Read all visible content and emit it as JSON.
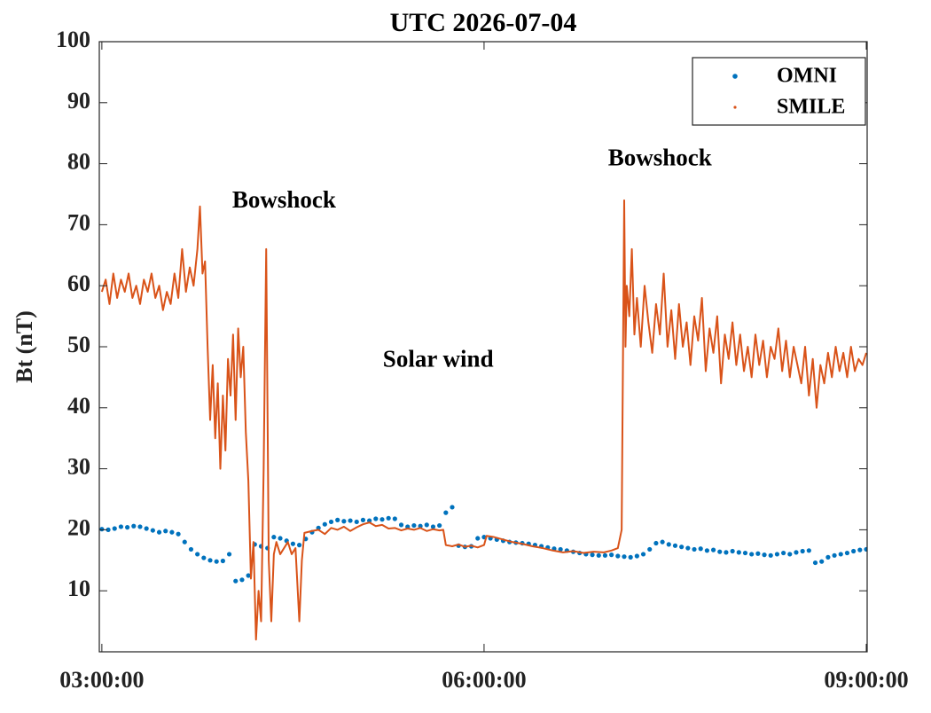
{
  "chart_data": {
    "type": "scatter",
    "title": "UTC 2026-07-04",
    "y_label": "Bt (nT)",
    "xlim": [
      2.98,
      9.007
    ],
    "ylim": [
      0,
      100
    ],
    "xticks": [
      {
        "value": 3,
        "label": "03:00:00"
      },
      {
        "value": 6,
        "label": "06:00:00"
      },
      {
        "value": 9,
        "label": "09:00:00"
      }
    ],
    "yticks": [
      10,
      20,
      30,
      40,
      50,
      60,
      70,
      80,
      90,
      100
    ],
    "grid": false,
    "legend": "upper right",
    "annotations": [
      {
        "text": "Bowshock",
        "x": 4.43,
        "y": 73.7
      },
      {
        "text": "Solar wind",
        "x": 5.64,
        "y": 47.6
      },
      {
        "text": "Bowshock",
        "x": 7.38,
        "y": 80.6
      }
    ],
    "series": [
      {
        "name": "OMNI",
        "color": "#0072BD",
        "mode": "markers",
        "x": [
          3.0,
          3.05,
          3.1,
          3.15,
          3.2,
          3.25,
          3.3,
          3.35,
          3.4,
          3.45,
          3.5,
          3.55,
          3.6,
          3.65,
          3.7,
          3.75,
          3.8,
          3.85,
          3.9,
          3.95,
          4.0,
          4.05,
          4.1,
          4.15,
          4.2,
          4.25,
          4.3,
          4.35,
          4.4,
          4.45,
          4.5,
          4.55,
          4.6,
          4.65,
          4.7,
          4.75,
          4.8,
          4.85,
          4.9,
          4.95,
          5.0,
          5.05,
          5.1,
          5.15,
          5.2,
          5.25,
          5.3,
          5.35,
          5.4,
          5.45,
          5.5,
          5.55,
          5.6,
          5.65,
          5.7,
          5.75,
          5.8,
          5.85,
          5.9,
          5.95,
          6.0,
          6.05,
          6.1,
          6.15,
          6.2,
          6.25,
          6.3,
          6.35,
          6.4,
          6.45,
          6.5,
          6.55,
          6.6,
          6.65,
          6.7,
          6.75,
          6.8,
          6.85,
          6.9,
          6.95,
          7.0,
          7.05,
          7.1,
          7.15,
          7.2,
          7.25,
          7.3,
          7.35,
          7.4,
          7.45,
          7.5,
          7.55,
          7.6,
          7.65,
          7.7,
          7.75,
          7.8,
          7.85,
          7.9,
          7.95,
          8.0,
          8.05,
          8.1,
          8.15,
          8.2,
          8.25,
          8.3,
          8.35,
          8.4,
          8.45,
          8.5,
          8.55,
          8.6,
          8.65,
          8.7,
          8.75,
          8.8,
          8.85,
          8.9,
          8.95,
          9.0
        ],
        "values": [
          20.1,
          20.0,
          20.2,
          20.5,
          20.4,
          20.6,
          20.5,
          20.2,
          19.9,
          19.6,
          19.8,
          19.6,
          19.3,
          18.0,
          16.8,
          16.0,
          15.4,
          15.0,
          14.8,
          14.9,
          16.0,
          11.6,
          11.8,
          12.5,
          17.6,
          17.3,
          17.0,
          18.8,
          18.6,
          18.2,
          17.7,
          17.5,
          18.5,
          19.6,
          20.3,
          20.9,
          21.3,
          21.6,
          21.4,
          21.5,
          21.3,
          21.6,
          21.5,
          21.8,
          21.7,
          21.9,
          21.8,
          20.8,
          20.5,
          20.7,
          20.6,
          20.8,
          20.5,
          20.7,
          22.8,
          23.7,
          17.4,
          17.2,
          17.3,
          18.6,
          18.8,
          18.6,
          18.4,
          18.2,
          18.0,
          17.9,
          17.8,
          17.7,
          17.5,
          17.3,
          17.1,
          16.9,
          16.8,
          16.6,
          16.4,
          16.2,
          16.0,
          15.9,
          15.8,
          15.8,
          15.9,
          15.7,
          15.6,
          15.5,
          15.7,
          16.0,
          16.8,
          17.8,
          18.0,
          17.6,
          17.4,
          17.2,
          17.0,
          16.8,
          16.9,
          16.6,
          16.7,
          16.4,
          16.3,
          16.5,
          16.3,
          16.2,
          16.0,
          16.1,
          15.9,
          15.8,
          16.0,
          16.2,
          16.0,
          16.3,
          16.5,
          16.6,
          14.6,
          14.8,
          15.5,
          15.8,
          16.0,
          16.2,
          16.5,
          16.7,
          16.8
        ]
      },
      {
        "name": "SMILE",
        "color": "#D95319",
        "mode": "lines",
        "x": [
          3.0,
          3.03,
          3.06,
          3.09,
          3.12,
          3.15,
          3.18,
          3.21,
          3.24,
          3.27,
          3.3,
          3.33,
          3.36,
          3.39,
          3.42,
          3.45,
          3.48,
          3.51,
          3.54,
          3.57,
          3.6,
          3.63,
          3.66,
          3.69,
          3.72,
          3.75,
          3.77,
          3.79,
          3.81,
          3.83,
          3.85,
          3.87,
          3.89,
          3.91,
          3.93,
          3.95,
          3.97,
          3.99,
          4.01,
          4.03,
          4.05,
          4.07,
          4.09,
          4.11,
          4.13,
          4.15,
          4.17,
          4.19,
          4.21,
          4.23,
          4.25,
          4.27,
          4.29,
          4.31,
          4.33,
          4.35,
          4.37,
          4.4,
          4.43,
          4.46,
          4.49,
          4.52,
          4.55,
          4.57,
          4.59,
          4.65,
          4.7,
          4.75,
          4.8,
          4.85,
          4.9,
          4.95,
          5.0,
          5.05,
          5.1,
          5.15,
          5.2,
          5.25,
          5.3,
          5.35,
          5.4,
          5.45,
          5.5,
          5.55,
          5.6,
          5.65,
          5.68,
          5.7,
          5.75,
          5.8,
          5.85,
          5.9,
          5.95,
          6.0,
          6.02,
          6.08,
          6.15,
          6.22,
          6.3,
          6.38,
          6.46,
          6.54,
          6.62,
          6.7,
          6.78,
          6.86,
          6.94,
          7.0,
          7.05,
          7.08,
          7.1,
          7.11,
          7.12,
          7.14,
          7.16,
          7.18,
          7.2,
          7.23,
          7.26,
          7.29,
          7.32,
          7.35,
          7.38,
          7.41,
          7.44,
          7.47,
          7.5,
          7.53,
          7.56,
          7.59,
          7.62,
          7.65,
          7.68,
          7.71,
          7.74,
          7.77,
          7.8,
          7.83,
          7.86,
          7.89,
          7.92,
          7.95,
          7.98,
          8.01,
          8.04,
          8.07,
          8.1,
          8.13,
          8.16,
          8.19,
          8.22,
          8.25,
          8.28,
          8.31,
          8.34,
          8.37,
          8.4,
          8.43,
          8.46,
          8.49,
          8.52,
          8.55,
          8.58,
          8.61,
          8.64,
          8.67,
          8.7,
          8.73,
          8.76,
          8.79,
          8.82,
          8.85,
          8.88,
          8.91,
          8.94,
          8.97,
          9.0
        ],
        "values": [
          59,
          61,
          57,
          62,
          58,
          61,
          59,
          62,
          58,
          60,
          57,
          61,
          59,
          62,
          58,
          60,
          56,
          59,
          57,
          62,
          58,
          66,
          59,
          63,
          60,
          66,
          73,
          62,
          64,
          50,
          38,
          47,
          35,
          44,
          30,
          42,
          33,
          48,
          42,
          52,
          38,
          53,
          45,
          50,
          36,
          28,
          12,
          18,
          2,
          10,
          5,
          30,
          66,
          15,
          5,
          16,
          18,
          16,
          17,
          18,
          16,
          17,
          5,
          15,
          19.5,
          19.8,
          20.0,
          19.3,
          20.3,
          20.0,
          20.5,
          19.8,
          20.4,
          20.9,
          21.2,
          20.6,
          20.8,
          20.2,
          20.3,
          19.9,
          20.2,
          20.0,
          20.3,
          19.8,
          20.1,
          19.9,
          20.0,
          17.5,
          17.3,
          17.6,
          17.2,
          17.4,
          17.1,
          17.5,
          19.0,
          18.8,
          18.4,
          18.0,
          17.7,
          17.3,
          17.0,
          16.6,
          16.3,
          16.5,
          16.2,
          16.4,
          16.3,
          16.6,
          17.0,
          20.0,
          74,
          50,
          60,
          55,
          66,
          52,
          58,
          50,
          60,
          54,
          49,
          57,
          52,
          62,
          50,
          56,
          48,
          57,
          50,
          54,
          47,
          55,
          51,
          58,
          46,
          53,
          49,
          55,
          44,
          52,
          48,
          54,
          47,
          52,
          46,
          50,
          45,
          52,
          47,
          51,
          45,
          50,
          48,
          53,
          46,
          51,
          45,
          50,
          47,
          44,
          50,
          42,
          48,
          40,
          47,
          44,
          49,
          45,
          50,
          46,
          49,
          45,
          50,
          46,
          48,
          47,
          49
        ]
      }
    ]
  }
}
